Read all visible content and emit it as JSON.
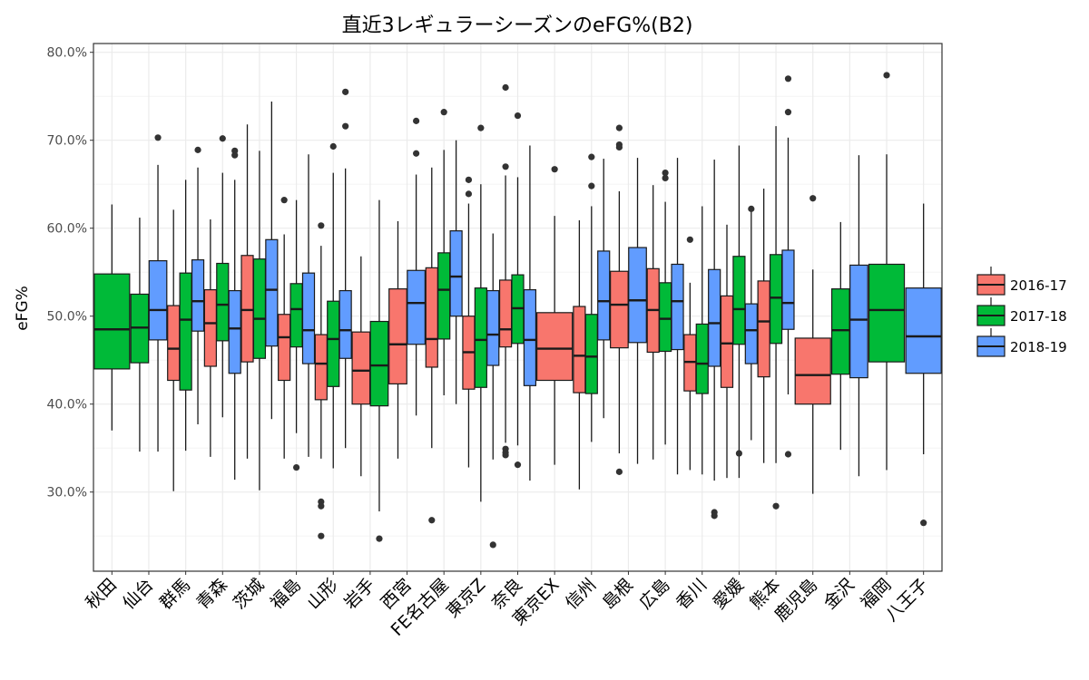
{
  "chart_data": {
    "type": "box",
    "title": "直近3レギュラーシーズンのeFG%(B2)",
    "ylabel": "eFG%",
    "xlabel": "",
    "ylim": [
      0.21,
      0.81
    ],
    "yticks": [
      0.3,
      0.4,
      0.5,
      0.6,
      0.7,
      0.8
    ],
    "ytick_labels": [
      "30.0%",
      "40.0%",
      "50.0%",
      "60.0%",
      "70.0%",
      "80.0%"
    ],
    "grid": true,
    "legend_position": "right",
    "categories": [
      "秋田",
      "仙台",
      "群馬",
      "青森",
      "茨城",
      "福島",
      "山形",
      "岩手",
      "西宮",
      "FE名古屋",
      "東京Z",
      "奈良",
      "東京EX",
      "信州",
      "島根",
      "広島",
      "香川",
      "愛媛",
      "熊本",
      "鹿児島",
      "金沢",
      "福岡",
      "八王子"
    ],
    "series": [
      {
        "name": "2016-17",
        "color": "#F8766D"
      },
      {
        "name": "2017-18",
        "color": "#00BA38"
      },
      {
        "name": "2018-19",
        "color": "#619CFF"
      }
    ],
    "boxes": [
      {
        "cat": 0,
        "series": 1,
        "min": 0.37,
        "q1": 0.44,
        "median": 0.485,
        "q3": 0.548,
        "max": 0.627,
        "outliers": []
      },
      {
        "cat": 1,
        "series": 1,
        "min": 0.346,
        "q1": 0.447,
        "median": 0.487,
        "q3": 0.525,
        "max": 0.612,
        "outliers": []
      },
      {
        "cat": 1,
        "series": 2,
        "min": 0.346,
        "q1": 0.473,
        "median": 0.507,
        "q3": 0.563,
        "max": 0.672,
        "outliers": [
          0.703
        ]
      },
      {
        "cat": 2,
        "series": 0,
        "min": 0.301,
        "q1": 0.427,
        "median": 0.463,
        "q3": 0.512,
        "max": 0.621,
        "outliers": []
      },
      {
        "cat": 2,
        "series": 1,
        "min": 0.347,
        "q1": 0.416,
        "median": 0.496,
        "q3": 0.549,
        "max": 0.655,
        "outliers": []
      },
      {
        "cat": 2,
        "series": 2,
        "min": 0.377,
        "q1": 0.483,
        "median": 0.517,
        "q3": 0.564,
        "max": 0.669,
        "outliers": [
          0.689
        ]
      },
      {
        "cat": 3,
        "series": 0,
        "min": 0.34,
        "q1": 0.443,
        "median": 0.492,
        "q3": 0.53,
        "max": 0.61,
        "outliers": []
      },
      {
        "cat": 3,
        "series": 1,
        "min": 0.385,
        "q1": 0.472,
        "median": 0.513,
        "q3": 0.56,
        "max": 0.663,
        "outliers": [
          0.702
        ]
      },
      {
        "cat": 3,
        "series": 2,
        "min": 0.314,
        "q1": 0.435,
        "median": 0.486,
        "q3": 0.529,
        "max": 0.655,
        "outliers": [
          0.688,
          0.683
        ]
      },
      {
        "cat": 4,
        "series": 0,
        "min": 0.338,
        "q1": 0.448,
        "median": 0.507,
        "q3": 0.569,
        "max": 0.718,
        "outliers": []
      },
      {
        "cat": 4,
        "series": 1,
        "min": 0.302,
        "q1": 0.452,
        "median": 0.497,
        "q3": 0.565,
        "max": 0.688,
        "outliers": []
      },
      {
        "cat": 4,
        "series": 2,
        "min": 0.383,
        "q1": 0.466,
        "median": 0.53,
        "q3": 0.587,
        "max": 0.744,
        "outliers": []
      },
      {
        "cat": 5,
        "series": 0,
        "min": 0.338,
        "q1": 0.427,
        "median": 0.476,
        "q3": 0.502,
        "max": 0.593,
        "outliers": [
          0.632
        ]
      },
      {
        "cat": 5,
        "series": 1,
        "min": 0.367,
        "q1": 0.465,
        "median": 0.508,
        "q3": 0.537,
        "max": 0.632,
        "outliers": [
          0.328
        ]
      },
      {
        "cat": 5,
        "series": 2,
        "min": 0.34,
        "q1": 0.446,
        "median": 0.484,
        "q3": 0.549,
        "max": 0.684,
        "outliers": []
      },
      {
        "cat": 6,
        "series": 0,
        "min": 0.338,
        "q1": 0.405,
        "median": 0.446,
        "q3": 0.479,
        "max": 0.58,
        "outliers": [
          0.603,
          0.289,
          0.284,
          0.25
        ]
      },
      {
        "cat": 6,
        "series": 1,
        "min": 0.327,
        "q1": 0.42,
        "median": 0.474,
        "q3": 0.517,
        "max": 0.663,
        "outliers": [
          0.693
        ]
      },
      {
        "cat": 6,
        "series": 2,
        "min": 0.35,
        "q1": 0.452,
        "median": 0.484,
        "q3": 0.529,
        "max": 0.668,
        "outliers": [
          0.755,
          0.716
        ]
      },
      {
        "cat": 7,
        "series": 0,
        "min": 0.318,
        "q1": 0.4,
        "median": 0.438,
        "q3": 0.482,
        "max": 0.568,
        "outliers": []
      },
      {
        "cat": 7,
        "series": 1,
        "min": 0.278,
        "q1": 0.398,
        "median": 0.444,
        "q3": 0.494,
        "max": 0.632,
        "outliers": [
          0.247
        ]
      },
      {
        "cat": 8,
        "series": 0,
        "min": 0.338,
        "q1": 0.423,
        "median": 0.468,
        "q3": 0.531,
        "max": 0.608,
        "outliers": []
      },
      {
        "cat": 8,
        "series": 2,
        "min": 0.387,
        "q1": 0.468,
        "median": 0.515,
        "q3": 0.552,
        "max": 0.661,
        "outliers": [
          0.722,
          0.685
        ]
      },
      {
        "cat": 9,
        "series": 0,
        "min": 0.35,
        "q1": 0.442,
        "median": 0.474,
        "q3": 0.555,
        "max": 0.669,
        "outliers": [
          0.268
        ]
      },
      {
        "cat": 9,
        "series": 1,
        "min": 0.41,
        "q1": 0.474,
        "median": 0.53,
        "q3": 0.572,
        "max": 0.689,
        "outliers": [
          0.732
        ]
      },
      {
        "cat": 9,
        "series": 2,
        "min": 0.4,
        "q1": 0.5,
        "median": 0.545,
        "q3": 0.597,
        "max": 0.7,
        "outliers": []
      },
      {
        "cat": 10,
        "series": 0,
        "min": 0.328,
        "q1": 0.417,
        "median": 0.459,
        "q3": 0.5,
        "max": 0.628,
        "outliers": [
          0.655,
          0.639
        ]
      },
      {
        "cat": 10,
        "series": 1,
        "min": 0.289,
        "q1": 0.419,
        "median": 0.473,
        "q3": 0.532,
        "max": 0.65,
        "outliers": [
          0.714
        ]
      },
      {
        "cat": 10,
        "series": 2,
        "min": 0.337,
        "q1": 0.444,
        "median": 0.479,
        "q3": 0.529,
        "max": 0.594,
        "outliers": [
          0.24
        ]
      },
      {
        "cat": 11,
        "series": 0,
        "min": 0.356,
        "q1": 0.465,
        "median": 0.485,
        "q3": 0.541,
        "max": 0.66,
        "outliers": [
          0.76,
          0.67,
          0.349,
          0.345,
          0.342
        ]
      },
      {
        "cat": 11,
        "series": 1,
        "min": 0.353,
        "q1": 0.469,
        "median": 0.509,
        "q3": 0.547,
        "max": 0.658,
        "outliers": [
          0.728,
          0.331
        ]
      },
      {
        "cat": 11,
        "series": 2,
        "min": 0.313,
        "q1": 0.421,
        "median": 0.473,
        "q3": 0.53,
        "max": 0.694,
        "outliers": []
      },
      {
        "cat": 12,
        "series": 0,
        "min": 0.331,
        "q1": 0.427,
        "median": 0.463,
        "q3": 0.504,
        "max": 0.614,
        "outliers": [
          0.667
        ]
      },
      {
        "cat": 13,
        "series": 0,
        "min": 0.303,
        "q1": 0.413,
        "median": 0.455,
        "q3": 0.511,
        "max": 0.609,
        "outliers": []
      },
      {
        "cat": 13,
        "series": 1,
        "min": 0.357,
        "q1": 0.412,
        "median": 0.454,
        "q3": 0.502,
        "max": 0.625,
        "outliers": [
          0.681,
          0.648
        ]
      },
      {
        "cat": 13,
        "series": 2,
        "min": 0.384,
        "q1": 0.473,
        "median": 0.517,
        "q3": 0.574,
        "max": 0.679,
        "outliers": []
      },
      {
        "cat": 14,
        "series": 0,
        "min": 0.344,
        "q1": 0.464,
        "median": 0.513,
        "q3": 0.551,
        "max": 0.642,
        "outliers": [
          0.714,
          0.695,
          0.692,
          0.323
        ]
      },
      {
        "cat": 14,
        "series": 2,
        "min": 0.332,
        "q1": 0.47,
        "median": 0.518,
        "q3": 0.578,
        "max": 0.68,
        "outliers": []
      },
      {
        "cat": 15,
        "series": 0,
        "min": 0.337,
        "q1": 0.459,
        "median": 0.507,
        "q3": 0.554,
        "max": 0.649,
        "outliers": []
      },
      {
        "cat": 15,
        "series": 1,
        "min": 0.354,
        "q1": 0.46,
        "median": 0.497,
        "q3": 0.538,
        "max": 0.63,
        "outliers": [
          0.663,
          0.657
        ]
      },
      {
        "cat": 15,
        "series": 2,
        "min": 0.32,
        "q1": 0.462,
        "median": 0.517,
        "q3": 0.559,
        "max": 0.68,
        "outliers": []
      },
      {
        "cat": 16,
        "series": 0,
        "min": 0.325,
        "q1": 0.415,
        "median": 0.448,
        "q3": 0.479,
        "max": 0.538,
        "outliers": [
          0.587
        ]
      },
      {
        "cat": 16,
        "series": 1,
        "min": 0.32,
        "q1": 0.412,
        "median": 0.446,
        "q3": 0.491,
        "max": 0.625,
        "outliers": []
      },
      {
        "cat": 16,
        "series": 2,
        "min": 0.313,
        "q1": 0.443,
        "median": 0.492,
        "q3": 0.553,
        "max": 0.678,
        "outliers": [
          0.277,
          0.273
        ]
      },
      {
        "cat": 17,
        "series": 0,
        "min": 0.316,
        "q1": 0.419,
        "median": 0.469,
        "q3": 0.523,
        "max": 0.604,
        "outliers": []
      },
      {
        "cat": 17,
        "series": 1,
        "min": 0.316,
        "q1": 0.468,
        "median": 0.508,
        "q3": 0.568,
        "max": 0.694,
        "outliers": [
          0.344
        ]
      },
      {
        "cat": 17,
        "series": 2,
        "min": 0.359,
        "q1": 0.446,
        "median": 0.484,
        "q3": 0.514,
        "max": 0.619,
        "outliers": [
          0.622
        ]
      },
      {
        "cat": 18,
        "series": 0,
        "min": 0.333,
        "q1": 0.431,
        "median": 0.494,
        "q3": 0.54,
        "max": 0.645,
        "outliers": []
      },
      {
        "cat": 18,
        "series": 1,
        "min": 0.333,
        "q1": 0.469,
        "median": 0.521,
        "q3": 0.57,
        "max": 0.716,
        "outliers": [
          0.284
        ]
      },
      {
        "cat": 18,
        "series": 2,
        "min": 0.411,
        "q1": 0.485,
        "median": 0.515,
        "q3": 0.575,
        "max": 0.703,
        "outliers": [
          0.77,
          0.732,
          0.343
        ]
      },
      {
        "cat": 19,
        "series": 0,
        "min": 0.298,
        "q1": 0.4,
        "median": 0.433,
        "q3": 0.475,
        "max": 0.553,
        "outliers": [
          0.634
        ]
      },
      {
        "cat": 20,
        "series": 1,
        "min": 0.348,
        "q1": 0.434,
        "median": 0.484,
        "q3": 0.531,
        "max": 0.607,
        "outliers": []
      },
      {
        "cat": 20,
        "series": 2,
        "min": 0.318,
        "q1": 0.43,
        "median": 0.496,
        "q3": 0.558,
        "max": 0.683,
        "outliers": []
      },
      {
        "cat": 21,
        "series": 1,
        "min": 0.325,
        "q1": 0.448,
        "median": 0.507,
        "q3": 0.559,
        "max": 0.684,
        "outliers": [
          0.774
        ]
      },
      {
        "cat": 22,
        "series": 2,
        "min": 0.343,
        "q1": 0.435,
        "median": 0.477,
        "q3": 0.532,
        "max": 0.628,
        "outliers": [
          0.265
        ]
      }
    ]
  }
}
